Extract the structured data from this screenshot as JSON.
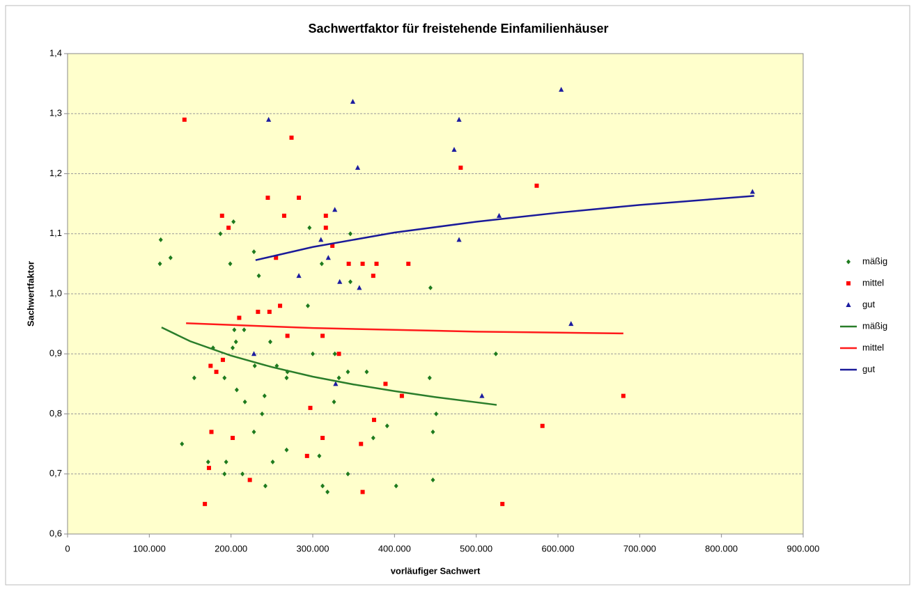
{
  "chart_data": {
    "type": "scatter",
    "title": "Sachwertfaktor für freistehende Einfamilienhäuser",
    "x_label": "vorläufiger Sachwert",
    "y_label": "Sachwertfaktor",
    "xlim": [
      0,
      900000
    ],
    "xticks": [
      0,
      {
        "value": 100000,
        "label": "100.000"
      },
      {
        "value": 200000,
        "label": "200.000"
      },
      {
        "value": 300000,
        "label": "300.000"
      },
      {
        "value": 400000,
        "label": "400.000"
      },
      {
        "value": 500000,
        "label": "500.000"
      },
      {
        "value": 600000,
        "label": "600.000"
      },
      {
        "value": 700000,
        "label": "700.000"
      },
      {
        "value": 800000,
        "label": "800.000"
      },
      {
        "value": 900000,
        "label": "900.000"
      }
    ],
    "ylim": [
      0.6,
      1.4
    ],
    "yticks": [
      {
        "value": 0.6,
        "label": "0,6"
      },
      {
        "value": 0.7,
        "label": "0,7"
      },
      {
        "value": 0.8,
        "label": "0,8"
      },
      {
        "value": 0.9,
        "label": "0,9"
      },
      {
        "value": 1.0,
        "label": "1,0"
      },
      {
        "value": 1.1,
        "label": "1,1"
      },
      {
        "value": 1.2,
        "label": "1,2"
      },
      {
        "value": 1.3,
        "label": "1,3"
      },
      {
        "value": 1.4,
        "label": "1,4"
      }
    ],
    "grid": true,
    "legend": "right",
    "series": [
      {
        "name": "mäßig",
        "color": "#1e7b1e",
        "marker": "diamond",
        "x": [
          114000,
          113000,
          126000,
          187000,
          203000,
          199000,
          228000,
          234000,
          296000,
          311000,
          346000,
          346000,
          294000,
          204000,
          216000,
          206000,
          202000,
          178000,
          155000,
          192000,
          248000,
          256000,
          229000,
          207000,
          217000,
          241000,
          238000,
          269000,
          268000,
          300000,
          327000,
          332000,
          343000,
          366000,
          326000,
          443000,
          524000,
          451000,
          391000,
          374000,
          447000,
          140000,
          172000,
          194000,
          192000,
          214000,
          228000,
          251000,
          268000,
          308000,
          242000,
          312000,
          318000,
          343000,
          402000,
          447000,
          444000
        ],
        "values": [
          1.09,
          1.05,
          1.06,
          1.1,
          1.12,
          1.05,
          1.07,
          1.03,
          1.11,
          1.05,
          1.1,
          1.02,
          0.98,
          0.94,
          0.94,
          0.92,
          0.91,
          0.91,
          0.86,
          0.86,
          0.92,
          0.88,
          0.88,
          0.84,
          0.82,
          0.83,
          0.8,
          0.87,
          0.86,
          0.9,
          0.9,
          0.86,
          0.87,
          0.87,
          0.82,
          0.86,
          0.9,
          0.8,
          0.78,
          0.76,
          0.77,
          0.75,
          0.72,
          0.72,
          0.7,
          0.7,
          0.77,
          0.72,
          0.74,
          0.73,
          0.68,
          0.68,
          0.67,
          0.7,
          0.68,
          0.69,
          1.01
        ]
      },
      {
        "name": "mittel",
        "color": "#ff0000",
        "marker": "square",
        "x": [
          143000,
          274000,
          481000,
          574000,
          245000,
          283000,
          189000,
          265000,
          316000,
          197000,
          316000,
          324000,
          255000,
          344000,
          361000,
          378000,
          417000,
          374000,
          260000,
          233000,
          247000,
          210000,
          269000,
          312000,
          332000,
          175000,
          182000,
          190000,
          389000,
          409000,
          680000,
          297000,
          375000,
          581000,
          176000,
          202000,
          312000,
          359000,
          293000,
          173000,
          223000,
          168000,
          361000,
          532000
        ],
        "values": [
          1.29,
          1.26,
          1.21,
          1.18,
          1.16,
          1.16,
          1.13,
          1.13,
          1.13,
          1.11,
          1.11,
          1.08,
          1.06,
          1.05,
          1.05,
          1.05,
          1.05,
          1.03,
          0.98,
          0.97,
          0.97,
          0.96,
          0.93,
          0.93,
          0.9,
          0.88,
          0.87,
          0.89,
          0.85,
          0.83,
          0.83,
          0.81,
          0.79,
          0.78,
          0.77,
          0.76,
          0.76,
          0.75,
          0.73,
          0.71,
          0.69,
          0.65,
          0.67,
          0.65
        ]
      },
      {
        "name": "gut",
        "color": "#1c1ca0",
        "marker": "triangle",
        "x": [
          604000,
          349000,
          246000,
          479000,
          473000,
          355000,
          327000,
          528000,
          838000,
          479000,
          319000,
          283000,
          333000,
          357000,
          616000,
          228000,
          328000,
          507000,
          310000
        ],
        "values": [
          1.34,
          1.32,
          1.29,
          1.29,
          1.24,
          1.21,
          1.14,
          1.13,
          1.17,
          1.09,
          1.06,
          1.03,
          1.02,
          1.01,
          0.95,
          0.9,
          0.85,
          0.83,
          1.09
        ]
      },
      {
        "name": "mäßig",
        "color": "#2a7d2a",
        "type": "line",
        "x": [
          115000,
          150000,
          200000,
          250000,
          300000,
          350000,
          400000,
          450000,
          525000
        ],
        "values": [
          0.944,
          0.921,
          0.897,
          0.878,
          0.862,
          0.849,
          0.838,
          0.828,
          0.815
        ]
      },
      {
        "name": "mittel",
        "color": "#ff1a1a",
        "type": "line",
        "x": [
          145000,
          300000,
          500000,
          680000
        ],
        "values": [
          0.951,
          0.943,
          0.937,
          0.934
        ]
      },
      {
        "name": "gut",
        "color": "#1a1a99",
        "type": "line",
        "x": [
          230000,
          300000,
          400000,
          500000,
          600000,
          700000,
          840000
        ],
        "values": [
          1.056,
          1.078,
          1.102,
          1.12,
          1.135,
          1.148,
          1.163
        ]
      }
    ]
  }
}
